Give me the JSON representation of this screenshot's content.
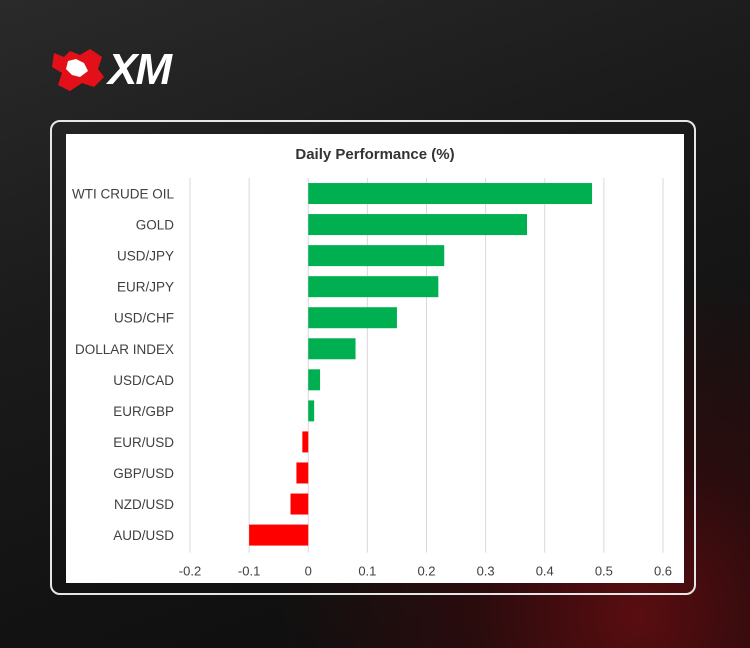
{
  "brand": {
    "logo_text": "XM",
    "accent_color": "#e3101a"
  },
  "chart_data": {
    "type": "bar",
    "orientation": "horizontal",
    "title": "Daily Performance  (%)",
    "categories": [
      "WTI CRUDE OIL",
      "GOLD",
      "USD/JPY",
      "EUR/JPY",
      "USD/CHF",
      "DOLLAR INDEX",
      "USD/CAD",
      "EUR/GBP",
      "EUR/USD",
      "GBP/USD",
      "NZD/USD",
      "AUD/USD"
    ],
    "values": [
      0.48,
      0.37,
      0.23,
      0.22,
      0.15,
      0.08,
      0.02,
      0.01,
      -0.01,
      -0.02,
      -0.03,
      -0.1
    ],
    "xlim": [
      -0.2,
      0.6
    ],
    "xticks": [
      "-0.2",
      "-0.1",
      "0",
      "0.1",
      "0.2",
      "0.3",
      "0.4",
      "0.5",
      "0.6"
    ],
    "grid": true,
    "legend": "none",
    "positive_color": "#00b050",
    "negative_color": "#ff0000"
  }
}
